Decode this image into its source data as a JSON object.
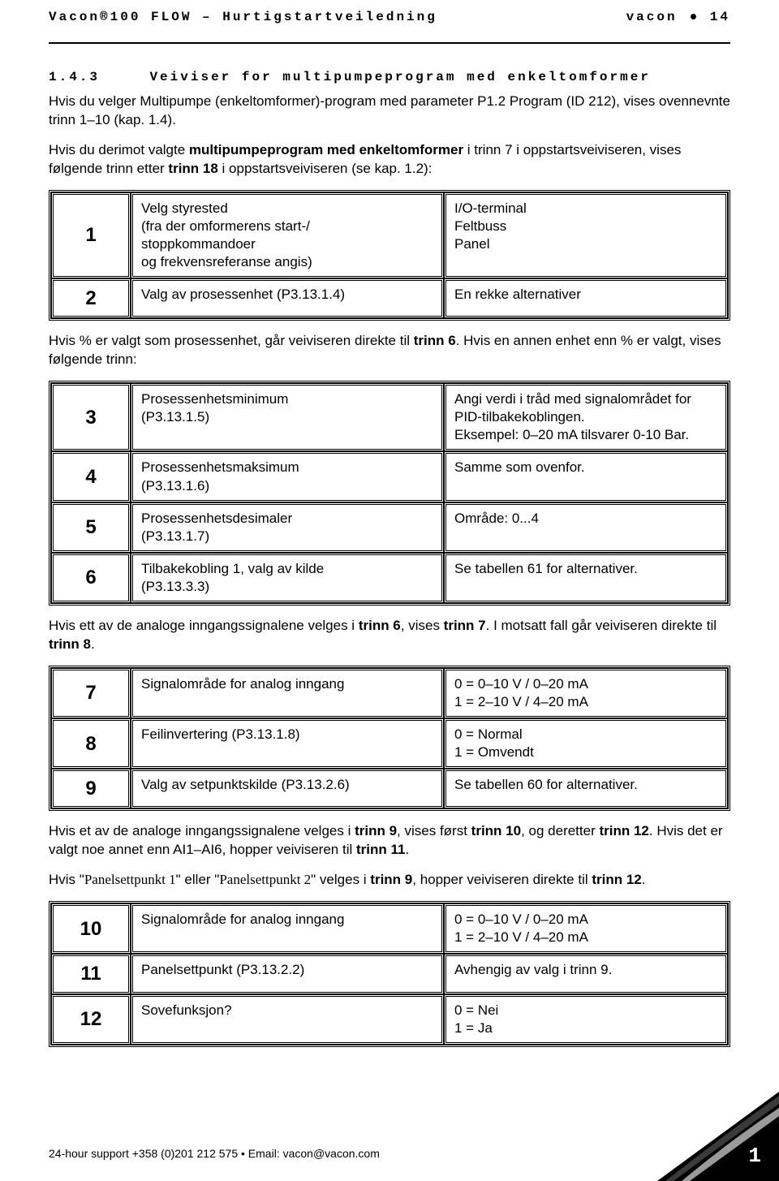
{
  "header": {
    "left": "Vacon®100 FLOW – Hurtigstartveiledning",
    "right_prefix": "vacon",
    "right_suffix": "14"
  },
  "section": {
    "num": "1.4.3",
    "title": "Veiviser for multipumpeprogram med enkeltomformer"
  },
  "para1_a": "Hvis du velger Multipumpe (enkeltomformer)-program med parameter P1.2 Program (ID 212), vises ovennevnte trinn 1–10 (kap. 1.4).",
  "para2_a": "Hvis du derimot valgte ",
  "para2_b": "multipumpeprogram med enkeltomformer",
  "para2_c": " i trinn 7 i oppstartsveiviseren, vises følgende trinn etter ",
  "para2_d": "trinn 18",
  "para2_e": " i oppstartsveiviseren (se kap. 1.2):",
  "table1": [
    {
      "n": "1",
      "a": "Velg styrested\n(fra der omformerens start-/\nstoppkommandoer\nog frekvensreferanse angis)",
      "b": "I/O-terminal\nFeltbuss\nPanel"
    },
    {
      "n": "2",
      "a": "Valg av prosessenhet (P3.13.1.4)",
      "b": "En rekke alternativer"
    }
  ],
  "para3_a": "Hvis % er valgt som prosessenhet, går veiviseren direkte til ",
  "para3_b": "trinn 6",
  "para3_c": ". Hvis en annen enhet enn % er valgt, vises følgende trinn:",
  "table2": [
    {
      "n": "3",
      "a": "Prosessenhetsminimum\n(P3.13.1.5)",
      "b": "Angi verdi i tråd med signalområdet for PID-tilbakekoblingen.\nEksempel: 0–20 mA tilsvarer 0-10 Bar."
    },
    {
      "n": "4",
      "a": "Prosessenhetsmaksimum\n(P3.13.1.6)",
      "b": "Samme som ovenfor."
    },
    {
      "n": "5",
      "a": "Prosessenhetsdesimaler\n(P3.13.1.7)",
      "b": "Område: 0...4"
    },
    {
      "n": "6",
      "a": "Tilbakekobling 1, valg av kilde\n(P3.13.3.3)",
      "b": "Se tabellen 61 for alternativer."
    }
  ],
  "para4_a": "Hvis ett av de analoge inngangssignalene velges i ",
  "para4_b": "trinn 6",
  "para4_c": ", vises ",
  "para4_d": "trinn 7",
  "para4_e": ". I motsatt fall går veiviseren direkte til ",
  "para4_f": "trinn 8",
  "para4_g": ".",
  "table3": [
    {
      "n": "7",
      "a": "Signalområde for analog inngang",
      "b": "0 = 0–10 V / 0–20 mA\n1 = 2–10 V / 4–20 mA"
    },
    {
      "n": "8",
      "a": "Feilinvertering (P3.13.1.8)",
      "b": "0 = Normal\n1 = Omvendt"
    },
    {
      "n": "9",
      "a": "Valg av setpunktskilde (P3.13.2.6)",
      "b": "Se tabellen 60 for alternativer."
    }
  ],
  "para5_a": "Hvis et av de analoge inngangssignalene velges i ",
  "para5_b": "trinn 9",
  "para5_c": ", vises først ",
  "para5_d": "trinn 10",
  "para5_e": ", og deretter ",
  "para5_f": "trinn 12",
  "para5_g": ". Hvis det er valgt noe annet enn AI1–AI6, hopper veiviseren til ",
  "para5_h": "trinn 11",
  "para5_i": ".",
  "para6_a": "Hvis \"",
  "para6_b": "Panelsettpunkt 1",
  "para6_c": "\" eller \"",
  "para6_d": "Panelsettpunkt 2",
  "para6_e": "\" velges i ",
  "para6_f": "trinn 9",
  "para6_g": ", hopper veiviseren direkte til ",
  "para6_h": "trinn 12",
  "para6_i": ".",
  "table4": [
    {
      "n": "10",
      "a": "Signalområde for analog inngang",
      "b": "0 = 0–10 V / 0–20 mA\n1 = 2–10 V / 4–20 mA"
    },
    {
      "n": "11",
      "a": "Panelsettpunkt (P3.13.2.2)",
      "b": "Avhengig av valg i trinn 9."
    },
    {
      "n": "12",
      "a": "Sovefunksjon?",
      "b": "0 = Nei\n1 = Ja"
    }
  ],
  "footer": "24-hour support +358 (0)201 212 575 • Email: vacon@vacon.com",
  "page_number": "1",
  "corner_colors": {
    "dark": "#000000",
    "mid": "#3a3a3a",
    "light": "#9a9a9a"
  }
}
